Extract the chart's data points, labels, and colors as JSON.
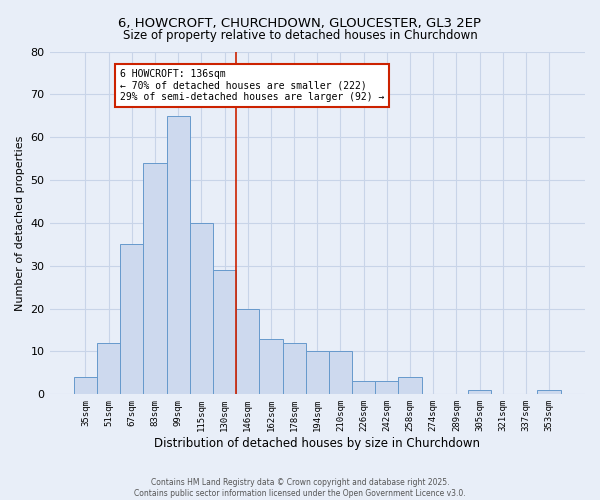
{
  "title": "6, HOWCROFT, CHURCHDOWN, GLOUCESTER, GL3 2EP",
  "subtitle": "Size of property relative to detached houses in Churchdown",
  "xlabel": "Distribution of detached houses by size in Churchdown",
  "ylabel": "Number of detached properties",
  "bar_labels": [
    "35sqm",
    "51sqm",
    "67sqm",
    "83sqm",
    "99sqm",
    "115sqm",
    "130sqm",
    "146sqm",
    "162sqm",
    "178sqm",
    "194sqm",
    "210sqm",
    "226sqm",
    "242sqm",
    "258sqm",
    "274sqm",
    "289sqm",
    "305sqm",
    "321sqm",
    "337sqm",
    "353sqm"
  ],
  "bar_values": [
    4,
    12,
    35,
    54,
    65,
    40,
    29,
    20,
    13,
    12,
    10,
    10,
    3,
    3,
    4,
    0,
    0,
    1,
    0,
    0,
    1
  ],
  "bar_color": "#cdd9ee",
  "bar_edge_color": "#6699cc",
  "background_color": "#e8eef8",
  "grid_color": "#c8d4e8",
  "vline_x_index": 6.5,
  "vline_color": "#cc2200",
  "annotation_text": "6 HOWCROFT: 136sqm\n← 70% of detached houses are smaller (222)\n29% of semi-detached houses are larger (92) →",
  "annotation_box_color": "#ffffff",
  "annotation_box_edge_color": "#cc2200",
  "ylim": [
    0,
    80
  ],
  "yticks": [
    0,
    10,
    20,
    30,
    40,
    50,
    60,
    70,
    80
  ],
  "footer_line1": "Contains HM Land Registry data © Crown copyright and database right 2025.",
  "footer_line2": "Contains public sector information licensed under the Open Government Licence v3.0."
}
